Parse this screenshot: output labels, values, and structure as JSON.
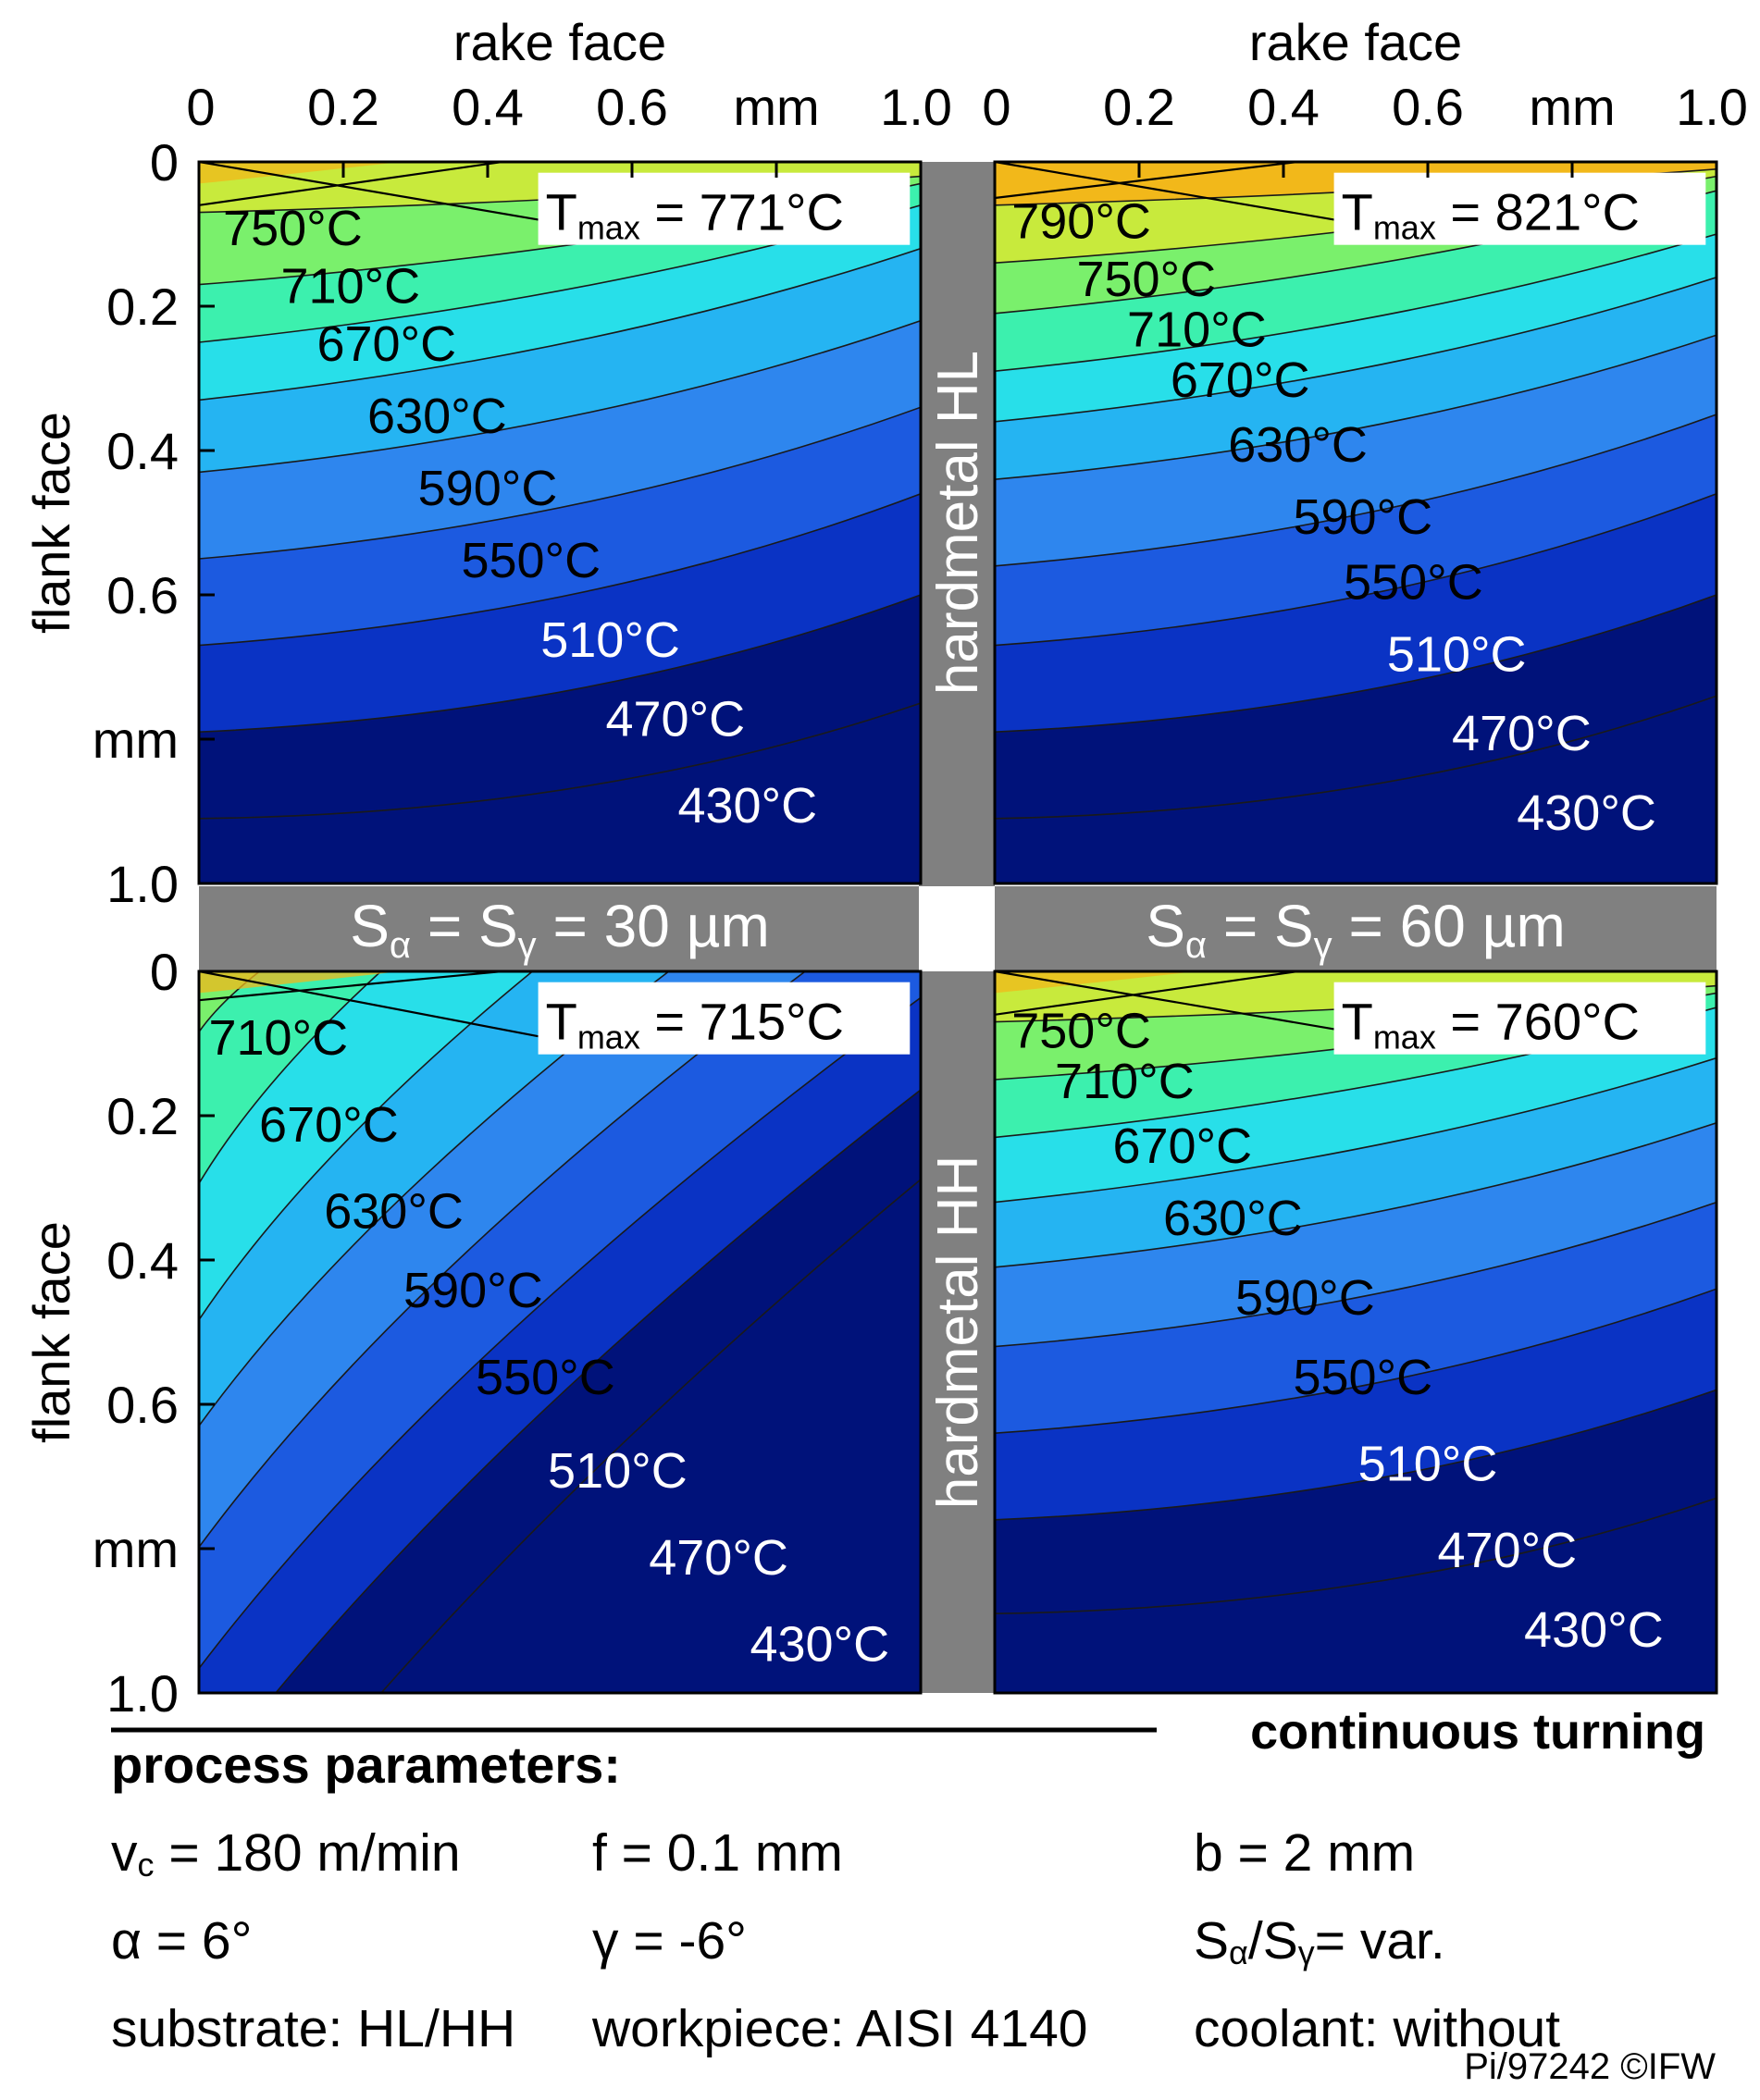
{
  "chart_data": {
    "type": "contour",
    "layout": "2x2 grid of simulated temperature fields in the cutting tool",
    "shared": {
      "top_axis_title": "rake face",
      "top_ticks": [
        "0",
        "0.2",
        "0.4",
        "0.6",
        "mm",
        "1.0"
      ],
      "left_axis_title": "flank face",
      "left_ticks": [
        "0",
        "0.2",
        "0.4",
        "0.6",
        "mm",
        "1.0"
      ],
      "xlim": [
        0,
        1.0
      ],
      "ylim": [
        0,
        1.0
      ],
      "units": "mm"
    },
    "separators": {
      "row_labels": [
        "hardmetal HL",
        "hardmetal HH"
      ],
      "col_labels": [
        {
          "base": "S",
          "sub1": "α",
          "eq": " = ",
          "base2": "S",
          "sub2": "γ",
          "value": " = 30 µm"
        },
        {
          "base": "S",
          "sub1": "α",
          "eq": " = ",
          "base2": "S",
          "sub2": "γ",
          "value": " = 60 µm"
        }
      ]
    },
    "panels": [
      {
        "substrate": "HL",
        "edge_rounding_um": 30,
        "tmax_label": {
          "T": "T",
          "sub": "max",
          "value": " = 771°C"
        },
        "tmax_celsius": 771,
        "contour_labels": [
          "750°C",
          "710°C",
          "670°C",
          "630°C",
          "590°C",
          "550°C",
          "510°C",
          "470°C",
          "430°C"
        ],
        "contour_levels": [
          750,
          710,
          670,
          630,
          590,
          550,
          510,
          470,
          430
        ]
      },
      {
        "substrate": "HL",
        "edge_rounding_um": 60,
        "tmax_label": {
          "T": "T",
          "sub": "max",
          "value": " = 821°C"
        },
        "tmax_celsius": 821,
        "contour_labels": [
          "790°C",
          "750°C",
          "710°C",
          "670°C",
          "630°C",
          "590°C",
          "550°C",
          "510°C",
          "470°C",
          "430°C"
        ],
        "contour_levels": [
          790,
          750,
          710,
          670,
          630,
          590,
          550,
          510,
          470,
          430
        ]
      },
      {
        "substrate": "HH",
        "edge_rounding_um": 30,
        "tmax_label": {
          "T": "T",
          "sub": "max",
          "value": " = 715°C"
        },
        "tmax_celsius": 715,
        "contour_labels": [
          "710°C",
          "670°C",
          "630°C",
          "590°C",
          "550°C",
          "510°C",
          "470°C",
          "430°C"
        ],
        "contour_levels": [
          710,
          670,
          630,
          590,
          550,
          510,
          470,
          430
        ]
      },
      {
        "substrate": "HH",
        "edge_rounding_um": 60,
        "tmax_label": {
          "T": "T",
          "sub": "max",
          "value": " = 760°C"
        },
        "tmax_celsius": 760,
        "contour_labels": [
          "750°C",
          "710°C",
          "670°C",
          "630°C",
          "590°C",
          "550°C",
          "510°C",
          "470°C",
          "430°C"
        ],
        "contour_levels": [
          750,
          710,
          670,
          630,
          590,
          550,
          510,
          470,
          430
        ]
      }
    ],
    "colors": {
      "band_430_470": "#00127a",
      "band_470_510": "#0a33c4",
      "band_510_550": "#1c5ae0",
      "band_550_590": "#2e86ee",
      "band_590_630": "#25b4f2",
      "band_630_670": "#28dfe9",
      "band_670_710": "#3cf0ae",
      "band_710_750": "#7af06c",
      "band_750_790": "#c8ea3c",
      "band_790_plus": "#f2b81a",
      "separator": "#808080"
    }
  },
  "footer": {
    "process_label": "continuous turning",
    "title": "process parameters:",
    "params": {
      "vc": {
        "sym": "v",
        "sub": "c",
        "value": " = 180 m/min"
      },
      "f": {
        "sym": "f",
        "value": " = 0.1 mm"
      },
      "b": {
        "sym": "b",
        "value": " = 2 mm"
      },
      "alpha": {
        "sym": "α",
        "value": " = 6°"
      },
      "gamma": {
        "sym": "γ",
        "value": " = -6°"
      },
      "ratio": {
        "sym1": "S",
        "sub1": "α",
        "slash": "/",
        "sym2": "S",
        "sub2": "γ",
        "value": "= var."
      },
      "substrate": "substrate: HL/HH",
      "workpiece": "workpiece: AISI 4140",
      "coolant": "coolant: without"
    },
    "copyright": "Pi/97242 ©IFW"
  }
}
